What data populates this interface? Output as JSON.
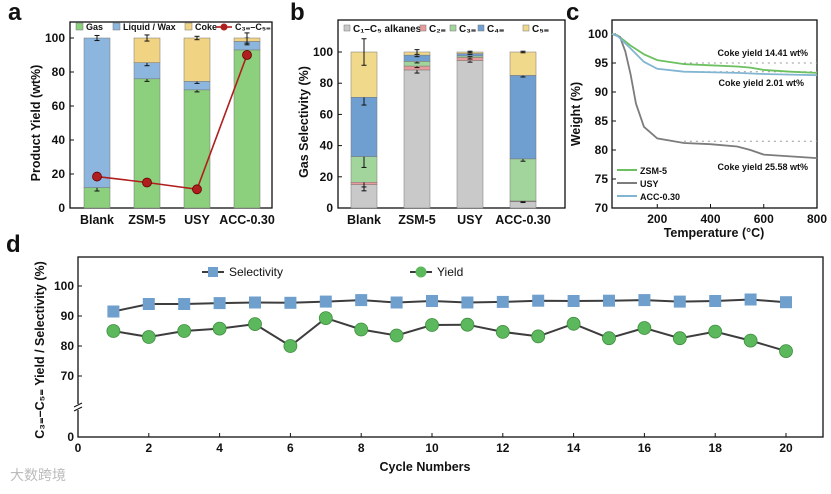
{
  "panel_letters": [
    "a",
    "b",
    "c",
    "d"
  ],
  "watermark": "大数跨境",
  "chart_data": [
    {
      "id": "a",
      "type": "bar",
      "stacked": true,
      "ylabel": "Product Yield (wt%)",
      "xlabel": "",
      "ylim": [
        0,
        110
      ],
      "yticks": [
        0,
        20,
        40,
        60,
        80,
        100
      ],
      "categories": [
        "Blank",
        "ZSM-5",
        "USY",
        "ACC-0.30"
      ],
      "series": [
        {
          "name": "Gas",
          "color": "#8ccf7c",
          "values": [
            12,
            76,
            69.5,
            93
          ],
          "errors": [
            2,
            1.5,
            1.2,
            1
          ]
        },
        {
          "name": "Liquid / Wax",
          "color": "#8db6de",
          "values": [
            88,
            9.5,
            5,
            5
          ],
          "errors": [
            1.5,
            1.8,
            1.2,
            2
          ]
        },
        {
          "name": "Coke",
          "color": "#f1d384",
          "values": [
            0,
            14.5,
            25.5,
            2
          ],
          "errors": [
            0,
            1.8,
            1,
            3
          ]
        }
      ],
      "line": {
        "name": "C₃₌–C₅₌",
        "color": "#b01e1e",
        "values": [
          18.5,
          15,
          11,
          90
        ]
      }
    },
    {
      "id": "b",
      "type": "bar",
      "stacked": true,
      "ylabel": "Gas Selectivity (%)",
      "xlabel": "",
      "ylim": [
        0,
        115
      ],
      "yticks": [
        0,
        20,
        40,
        60,
        80,
        100
      ],
      "categories": [
        "Blank",
        "ZSM-5",
        "USY",
        "ACC-0.30"
      ],
      "series": [
        {
          "name": "C₁–C₅ alkanes",
          "color": "#c9c9c9",
          "values": [
            15,
            88.5,
            94.5,
            4
          ],
          "errors": [
            4,
            2,
            1,
            0.5
          ]
        },
        {
          "name": "C₂₌",
          "color": "#e99b9b",
          "values": [
            1.5,
            2.5,
            2,
            0.5
          ],
          "errors": [
            3,
            1,
            1,
            0.3
          ]
        },
        {
          "name": "C₃₌",
          "color": "#a2d59b",
          "values": [
            16.5,
            3,
            1,
            27
          ],
          "errors": [
            7,
            1,
            0.5,
            1.5
          ]
        },
        {
          "name": "C₄₌",
          "color": "#6f9fd1",
          "values": [
            38,
            4,
            1.5,
            53.5
          ],
          "errors": [
            5,
            1,
            0.5,
            1
          ]
        },
        {
          "name": "C₅₌",
          "color": "#f0d98b",
          "values": [
            29,
            2,
            1,
            15
          ],
          "errors": [
            8.5,
            1.5,
            0.5,
            0.5
          ]
        }
      ]
    },
    {
      "id": "c",
      "type": "line",
      "xlabel": "Temperature (°C)",
      "ylabel": "Weight (%)",
      "xlim": [
        30,
        800
      ],
      "ylim": [
        70,
        100
      ],
      "xticks": [
        200,
        400,
        600,
        800
      ],
      "yticks": [
        70,
        75,
        80,
        85,
        90,
        95,
        100
      ],
      "series": [
        {
          "name": "ZSM-5",
          "color": "#6cc060",
          "x": [
            30,
            50,
            100,
            150,
            200,
            300,
            400,
            500,
            550,
            600,
            700,
            800
          ],
          "y": [
            100,
            99.8,
            98,
            96.5,
            95.5,
            94.8,
            94.6,
            94.4,
            94.2,
            93.8,
            93.5,
            93.3
          ]
        },
        {
          "name": "USY",
          "color": "#7c7c7c",
          "x": [
            30,
            60,
            80,
            100,
            120,
            150,
            200,
            300,
            400,
            500,
            550,
            600,
            700,
            800
          ],
          "y": [
            100,
            99.5,
            97,
            93,
            88,
            84,
            82,
            81.2,
            81,
            80.6,
            80,
            79.2,
            78.9,
            78.6
          ]
        },
        {
          "name": "ACC-0.30",
          "color": "#82b5d2",
          "x": [
            30,
            50,
            100,
            150,
            200,
            300,
            400,
            500,
            600,
            700,
            800
          ],
          "y": [
            100,
            99.7,
            97.5,
            95.2,
            94,
            93.5,
            93.4,
            93.3,
            93.1,
            93,
            92.9
          ]
        }
      ],
      "reference_lines": [
        95,
        93.5,
        81.5
      ],
      "annotations": [
        "Coke yield 14.41 wt%",
        "Coke yield 2.01 wt%",
        "Coke yield 25.58 wt%"
      ]
    },
    {
      "id": "d",
      "type": "line",
      "xlabel": "Cycle Numbers",
      "ylabel": "C₃₌–C₅₌ Yield / Selectivity (%)",
      "xlim": [
        0,
        21
      ],
      "ylim": [
        0,
        110
      ],
      "axis_break": [
        0,
        62
      ],
      "xticks": [
        0,
        2,
        4,
        6,
        8,
        10,
        12,
        14,
        16,
        18,
        20
      ],
      "yticks": [
        0,
        70,
        80,
        90,
        100
      ],
      "x": [
        1,
        2,
        3,
        4,
        5,
        6,
        7,
        8,
        9,
        10,
        11,
        12,
        13,
        14,
        15,
        16,
        17,
        18,
        19,
        20
      ],
      "series": [
        {
          "name": "Selectivity",
          "marker": "square",
          "color": "#6f9fcc",
          "values": [
            91.5,
            94,
            94,
            94.3,
            94.5,
            94.4,
            94.8,
            95.3,
            94.5,
            95,
            94.5,
            94.7,
            95.1,
            95,
            95.1,
            95.3,
            94.8,
            95,
            95.5,
            94.6
          ]
        },
        {
          "name": "Yield",
          "marker": "circle",
          "color": "#5cb85c",
          "values": [
            85,
            83,
            85,
            85.8,
            87.3,
            80,
            89.3,
            85.5,
            83.5,
            87,
            87.1,
            84.7,
            83.2,
            87.4,
            82.6,
            86,
            82.6,
            84.8,
            81.8,
            78.3
          ]
        }
      ]
    }
  ]
}
